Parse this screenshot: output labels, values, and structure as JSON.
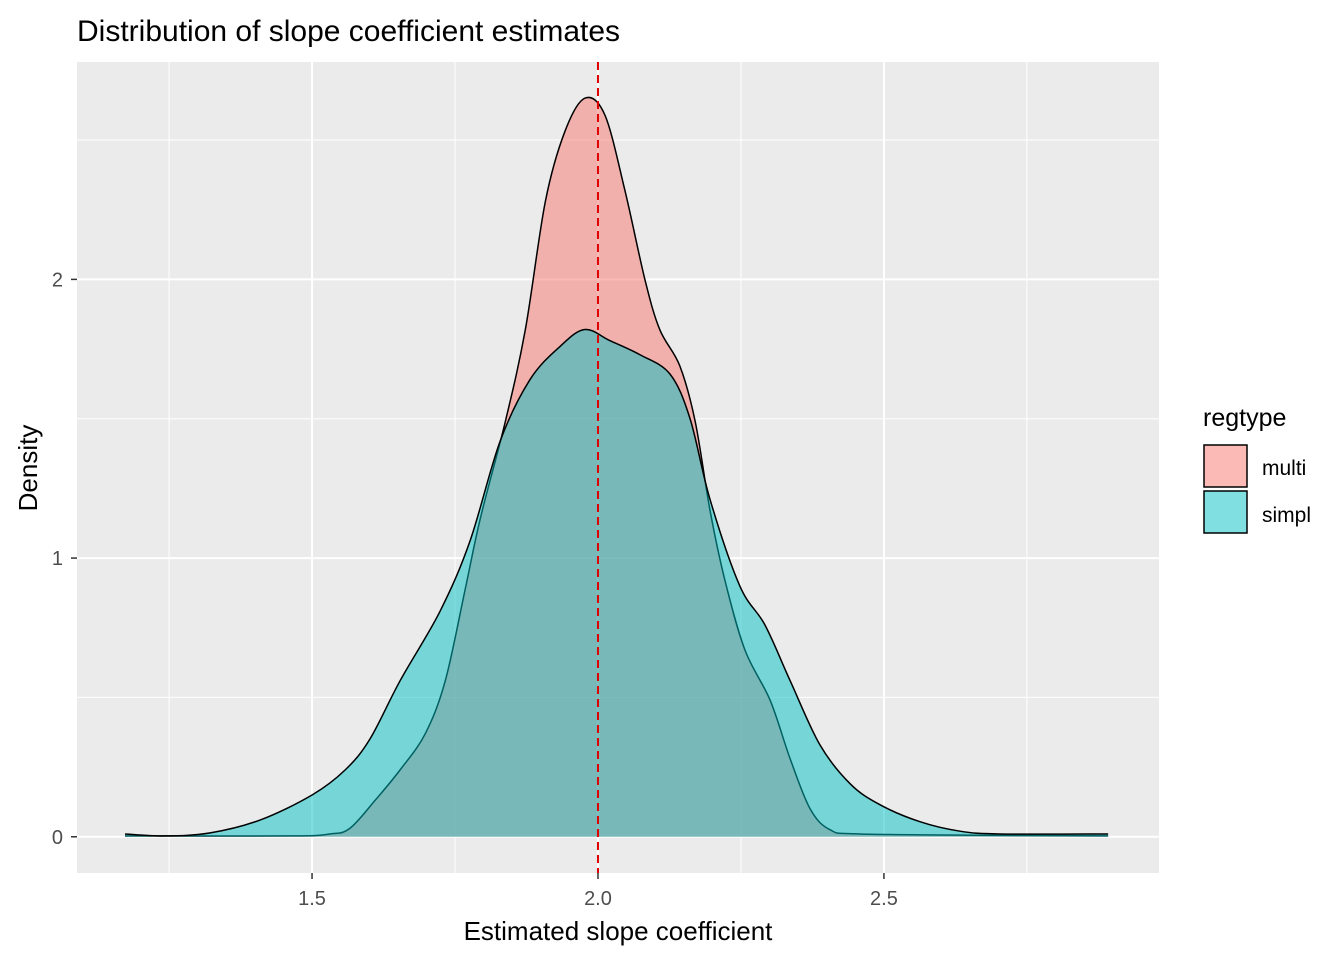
{
  "chart_data": {
    "type": "area",
    "title": "Distribution of slope coefficient estimates",
    "xlabel": "Estimated slope coefficient",
    "ylabel": "Density",
    "xlim": [
      1.089,
      2.981
    ],
    "ylim": [
      -0.13,
      2.78
    ],
    "x_ticks": [
      1.5,
      2.0,
      2.5
    ],
    "x_tick_labels": [
      "1.5",
      "2.0",
      "2.5"
    ],
    "y_ticks": [
      0,
      1,
      2
    ],
    "y_tick_labels": [
      "0",
      "1",
      "2"
    ],
    "grid": true,
    "reference_line": {
      "x": 2.0,
      "color": "#E00000",
      "style": "dashed"
    },
    "legend": {
      "title": "regtype",
      "placement": "right"
    },
    "series": [
      {
        "name": "multi",
        "color": "#F8766D",
        "x": [
          1.173,
          1.462,
          1.531,
          1.566,
          1.61,
          1.654,
          1.698,
          1.733,
          1.768,
          1.794,
          1.838,
          1.873,
          1.908,
          1.942,
          1.977,
          2.012,
          2.047,
          2.082,
          2.108,
          2.143,
          2.17,
          2.196,
          2.222,
          2.257,
          2.301,
          2.336,
          2.371,
          2.406,
          2.458,
          2.703,
          2.892
        ],
        "y": [
          0.003,
          0.003,
          0.01,
          0.03,
          0.13,
          0.24,
          0.37,
          0.56,
          0.89,
          1.14,
          1.49,
          1.82,
          2.28,
          2.53,
          2.65,
          2.59,
          2.32,
          2.0,
          1.82,
          1.69,
          1.49,
          1.17,
          0.92,
          0.67,
          0.49,
          0.28,
          0.1,
          0.025,
          0.01,
          0.005,
          0.003
        ]
      },
      {
        "name": "simpl",
        "color": "#00BFC4",
        "x": [
          1.173,
          1.243,
          1.322,
          1.409,
          1.5,
          1.558,
          1.601,
          1.654,
          1.724,
          1.776,
          1.829,
          1.881,
          1.934,
          1.977,
          2.021,
          2.073,
          2.126,
          2.161,
          2.196,
          2.248,
          2.292,
          2.336,
          2.388,
          2.441,
          2.493,
          2.563,
          2.633,
          2.703,
          2.892
        ],
        "y": [
          0.01,
          0.003,
          0.014,
          0.06,
          0.15,
          0.24,
          0.35,
          0.56,
          0.81,
          1.06,
          1.42,
          1.64,
          1.76,
          1.82,
          1.78,
          1.73,
          1.66,
          1.5,
          1.21,
          0.9,
          0.76,
          0.56,
          0.33,
          0.19,
          0.115,
          0.054,
          0.02,
          0.01,
          0.01
        ]
      }
    ]
  }
}
